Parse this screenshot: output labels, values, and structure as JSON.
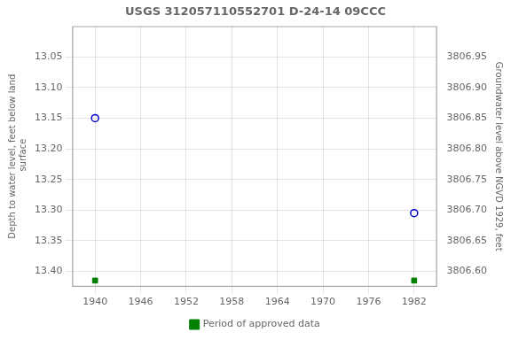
{
  "chart_data": {
    "type": "scatter",
    "title": "USGS 312057110552701 D-24-14 09CCC",
    "y_label": "Depth to water level, feet below land\n surface",
    "y2_label": "Groundwater level above NGVD 1929, feet",
    "x": [
      1940,
      1982
    ],
    "xlim": [
      1937,
      1985
    ],
    "xticks": [
      1940,
      1946,
      1952,
      1958,
      1964,
      1970,
      1976,
      1982
    ],
    "ylim": [
      13.425,
      13.0
    ],
    "yticks": [
      {
        "value": 13.05,
        "label": "13.05"
      },
      {
        "value": 13.1,
        "label": "13.10"
      },
      {
        "value": 13.15,
        "label": "13.15"
      },
      {
        "value": 13.2,
        "label": "13.20"
      },
      {
        "value": 13.25,
        "label": "13.25"
      },
      {
        "value": 13.3,
        "label": "13.30"
      },
      {
        "value": 13.35,
        "label": "13.35"
      },
      {
        "value": 13.4,
        "label": "13.40"
      }
    ],
    "y2lim": [
      3806.575,
      3807.0
    ],
    "y2ticks": [
      {
        "value": 3806.95,
        "label": "3806.95"
      },
      {
        "value": 3806.9,
        "label": "3806.90"
      },
      {
        "value": 3806.85,
        "label": "3806.85"
      },
      {
        "value": 3806.8,
        "label": "3806.80"
      },
      {
        "value": 3806.75,
        "label": "3806.75"
      },
      {
        "value": 3806.7,
        "label": "3806.70"
      },
      {
        "value": 3806.65,
        "label": "3806.65"
      },
      {
        "value": 3806.6,
        "label": "3806.60"
      }
    ],
    "grid": true,
    "legend": "bottom",
    "series": [
      {
        "color": "#0000cc",
        "marker": "open_circle",
        "line_style": "none",
        "values": [
          13.15,
          13.305
        ]
      },
      {
        "name": "Period of approved data",
        "color": "#008000",
        "marker": "square",
        "line_style": "none",
        "values": [
          13.415,
          13.415
        ]
      }
    ]
  }
}
